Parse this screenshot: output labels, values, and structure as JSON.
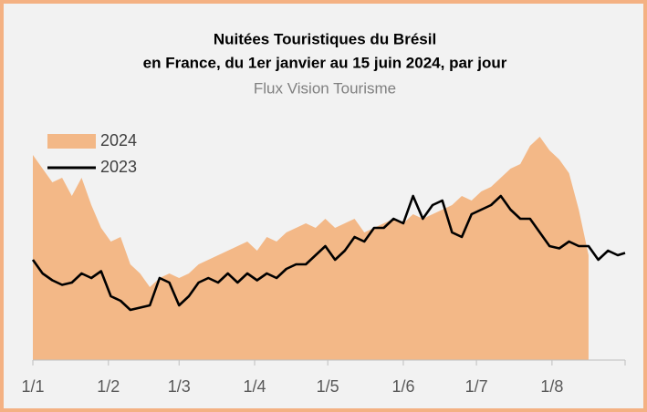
{
  "chart_data": {
    "type": "area-line",
    "title": "Nuitées Touristiques du Brésil",
    "title_line2": "en France, du 1er janvier au 15 juin 2024, par jour",
    "subtitle": "Flux Vision Tourisme",
    "x": [
      0,
      4,
      8,
      12,
      16,
      20,
      24,
      28,
      32,
      36,
      40,
      44,
      48,
      52,
      56,
      60,
      64,
      68,
      72,
      76,
      80,
      84,
      88,
      92,
      96,
      100,
      104,
      108,
      112,
      116,
      120,
      124,
      128,
      132,
      136,
      140,
      144,
      148,
      152,
      156,
      160,
      164,
      168,
      172,
      176,
      180,
      184,
      188,
      192,
      196,
      200,
      204,
      208,
      212,
      216,
      220,
      224,
      228,
      232,
      236,
      240,
      243
    ],
    "xlim": [
      0,
      243
    ],
    "xticks": [
      {
        "value": 0,
        "label": "1/1"
      },
      {
        "value": 31,
        "label": "1/2"
      },
      {
        "value": 60,
        "label": "1/3"
      },
      {
        "value": 91,
        "label": "1/4"
      },
      {
        "value": 121,
        "label": "1/5"
      },
      {
        "value": 152,
        "label": "1/6"
      },
      {
        "value": 182,
        "label": "1/7"
      },
      {
        "value": 213,
        "label": "1/8"
      }
    ],
    "ylim": [
      0,
      100
    ],
    "legend": "top-left",
    "series": [
      {
        "name": "2024",
        "kind": "area",
        "color": "#f3b887",
        "values": [
          90,
          84,
          78,
          80,
          72,
          80,
          68,
          58,
          52,
          54,
          42,
          38,
          32,
          36,
          38,
          36,
          38,
          42,
          44,
          46,
          48,
          50,
          52,
          48,
          54,
          52,
          56,
          58,
          60,
          58,
          62,
          58,
          60,
          62,
          56,
          58,
          60,
          62,
          60,
          64,
          62,
          64,
          66,
          68,
          72,
          70,
          74,
          76,
          80,
          84,
          86,
          94,
          98,
          92,
          88,
          82,
          66,
          46,
          null,
          null,
          null,
          null
        ]
      },
      {
        "name": "2023",
        "kind": "line",
        "color": "#000000",
        "values": [
          44,
          38,
          35,
          33,
          34,
          38,
          36,
          39,
          28,
          26,
          22,
          23,
          24,
          36,
          34,
          24,
          28,
          34,
          36,
          34,
          38,
          34,
          38,
          35,
          38,
          36,
          40,
          42,
          42,
          46,
          50,
          44,
          48,
          54,
          52,
          58,
          58,
          62,
          60,
          72,
          62,
          68,
          70,
          56,
          54,
          64,
          66,
          68,
          72,
          66,
          62,
          62,
          56,
          50,
          49,
          52,
          50,
          50,
          44,
          48,
          46,
          47
        ]
      }
    ]
  }
}
